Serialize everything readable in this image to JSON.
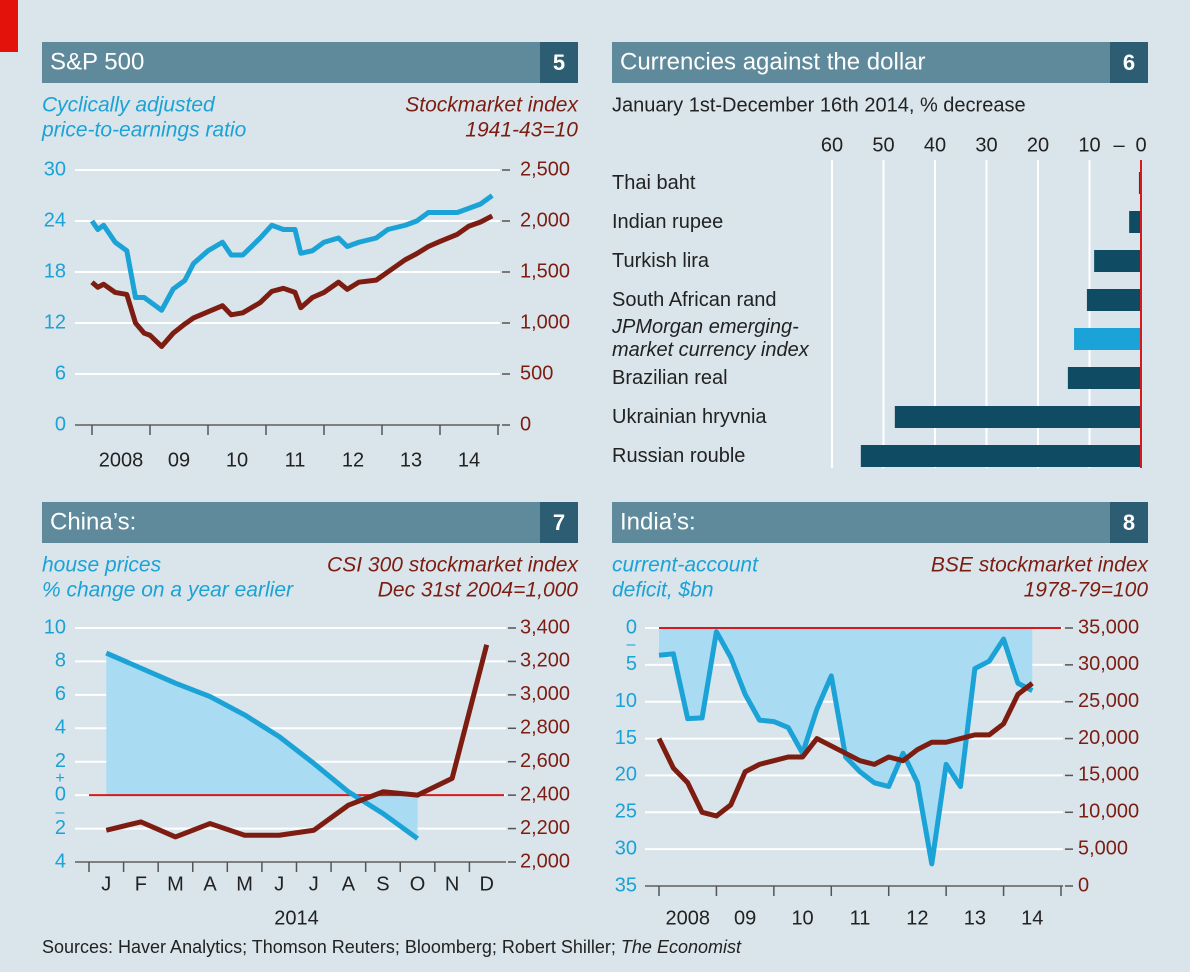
{
  "chart_data": [
    {
      "type": "line",
      "title": "S&P 500",
      "number": "5",
      "y_label": [
        "Cyclically adjusted",
        "price-to-earnings ratio"
      ],
      "y2_label": [
        "Stockmarket index",
        "1941-43=10"
      ],
      "x": [
        2008.0,
        2008.1,
        2008.2,
        2008.4,
        2008.6,
        2008.75,
        2008.9,
        2009.0,
        2009.2,
        2009.4,
        2009.6,
        2009.75,
        2010.0,
        2010.25,
        2010.4,
        2010.6,
        2010.9,
        2011.1,
        2011.3,
        2011.5,
        2011.6,
        2011.8,
        2012.0,
        2012.25,
        2012.4,
        2012.6,
        2012.9,
        2013.1,
        2013.4,
        2013.6,
        2013.8,
        2014.0,
        2014.3,
        2014.5,
        2014.7,
        2014.9
      ],
      "xlim": [
        2008,
        2015
      ],
      "xticks": [
        2008,
        {
          "value": 2009,
          "label": "09"
        },
        {
          "value": 2010,
          "label": "10"
        },
        {
          "value": 2011,
          "label": "11"
        },
        {
          "value": 2012,
          "label": "12"
        },
        {
          "value": 2013,
          "label": "13"
        },
        {
          "value": 2014,
          "label": "14"
        }
      ],
      "ylim": [
        0,
        30
      ],
      "yticks": [
        0,
        6,
        12,
        18,
        24,
        30
      ],
      "y2lim": [
        0,
        2500
      ],
      "y2ticks": [
        0,
        500,
        {
          "value": 1000,
          "label": "1,000"
        },
        {
          "value": 1500,
          "label": "1,500"
        },
        {
          "value": 2000,
          "label": "2,000"
        },
        {
          "value": 2500,
          "label": "2,500"
        }
      ],
      "grid": true,
      "series": [
        {
          "color": "#1ba2d6",
          "values": [
            24,
            23,
            23.5,
            21.5,
            20.5,
            15,
            15,
            14.5,
            13.5,
            16,
            17,
            19,
            20.5,
            21.5,
            20,
            20,
            22,
            23.5,
            23,
            23,
            20.2,
            20.5,
            21.5,
            22,
            21,
            21.5,
            22,
            23,
            23.5,
            24,
            25,
            25,
            25,
            25.5,
            26,
            27
          ]
        },
        {
          "color": "#7d1d12",
          "axis": "y2",
          "values": [
            1400,
            1350,
            1380,
            1300,
            1280,
            1000,
            900,
            880,
            770,
            900,
            990,
            1050,
            1110,
            1170,
            1080,
            1100,
            1200,
            1310,
            1340,
            1300,
            1150,
            1250,
            1300,
            1400,
            1330,
            1400,
            1420,
            1500,
            1620,
            1680,
            1750,
            1800,
            1870,
            1950,
            1990,
            2050
          ]
        }
      ]
    },
    {
      "type": "hbar",
      "title": "Currencies against the dollar",
      "number": "6",
      "subtitle": "January 1st-December 16th 2014, % decrease",
      "categories": [
        "Thai baht",
        "Indian rupee",
        "Turkish lira",
        "South African rand",
        "JPMorgan emerging-market currency index",
        "Brazilian real",
        "Ukrainian hryvnia",
        "Russian rouble"
      ],
      "values": [
        0.4,
        2.3,
        9.1,
        10.5,
        13.0,
        14.2,
        47.8,
        54.4
      ],
      "colors": [
        "#0f4c63",
        "#0f4c63",
        "#0f4c63",
        "#0f4c63",
        "#1ba2d6",
        "#0f4c63",
        "#0f4c63",
        "#0f4c63"
      ],
      "italic": [
        false,
        false,
        false,
        false,
        true,
        false,
        false,
        false
      ],
      "xlim": [
        60,
        0
      ],
      "xticks": [
        60,
        50,
        40,
        30,
        20,
        10,
        0
      ],
      "sign_labels": [
        "–"
      ],
      "grid": true,
      "zero_line": true
    },
    {
      "type": "line",
      "title": "China’s:",
      "number": "7",
      "y_label": [
        "house prices",
        "% change on a year earlier"
      ],
      "y2_label": [
        "CSI 300 stockmarket index",
        "Dec 31st 2004=1,000"
      ],
      "categories": [
        "J",
        "F",
        "M",
        "A",
        "M",
        "J",
        "J",
        "A",
        "S",
        "O",
        "N",
        "D"
      ],
      "x_label": "2014",
      "ylim": [
        -4,
        10
      ],
      "yticks": [
        10,
        8,
        6,
        4,
        2,
        0,
        {
          "value": -2,
          "label": "2"
        },
        {
          "value": -4,
          "label": "4"
        }
      ],
      "sign_labels": [
        "+",
        "–"
      ],
      "y2lim": [
        2000,
        3400
      ],
      "y2ticks": [
        {
          "value": 3400,
          "label": "3,400"
        },
        {
          "value": 3200,
          "label": "3,200"
        },
        {
          "value": 3000,
          "label": "3,000"
        },
        {
          "value": 2800,
          "label": "2,800"
        },
        {
          "value": 2600,
          "label": "2,600"
        },
        {
          "value": 2400,
          "label": "2,400"
        },
        {
          "value": 2200,
          "label": "2,200"
        },
        {
          "value": 2000,
          "label": "2,000"
        }
      ],
      "grid": true,
      "zero_line": true,
      "series": [
        {
          "color": "#1ba2d6",
          "area": true,
          "values": [
            8.5,
            7.6,
            6.7,
            5.9,
            4.8,
            3.5,
            1.9,
            0.2,
            -1.1,
            -2.6,
            null,
            null
          ]
        },
        {
          "color": "#7d1d12",
          "axis": "y2",
          "values": [
            2190,
            2240,
            2150,
            2230,
            2160,
            2160,
            2190,
            2340,
            2420,
            2400,
            2500,
            3300
          ]
        }
      ]
    },
    {
      "type": "line",
      "title": "India’s:",
      "number": "8",
      "y_label": [
        "current-account",
        "deficit, $bn"
      ],
      "y2_label": [
        "BSE stockmarket index",
        "1978-79=100"
      ],
      "x": [
        2008.0,
        2008.25,
        2008.5,
        2008.75,
        2009.0,
        2009.25,
        2009.5,
        2009.75,
        2010.0,
        2010.25,
        2010.5,
        2010.75,
        2011.0,
        2011.25,
        2011.5,
        2011.75,
        2012.0,
        2012.25,
        2012.5,
        2012.75,
        2013.0,
        2013.25,
        2013.5,
        2013.75,
        2014.0,
        2014.25,
        2014.5
      ],
      "xlim": [
        2008,
        2015
      ],
      "xticks": [
        2008,
        {
          "value": 2009,
          "label": "09"
        },
        {
          "value": 2010,
          "label": "10"
        },
        {
          "value": 2011,
          "label": "11"
        },
        {
          "value": 2012,
          "label": "12"
        },
        {
          "value": 2013,
          "label": "13"
        },
        {
          "value": 2014,
          "label": "14"
        }
      ],
      "ylim": [
        35,
        0
      ],
      "yticks": [
        0,
        5,
        10,
        15,
        20,
        25,
        30,
        35
      ],
      "sign_labels": [
        "–"
      ],
      "y2lim": [
        0,
        35000
      ],
      "y2ticks": [
        {
          "value": 35000,
          "label": "35,000"
        },
        {
          "value": 30000,
          "label": "30,000"
        },
        {
          "value": 25000,
          "label": "25,000"
        },
        {
          "value": 20000,
          "label": "20,000"
        },
        {
          "value": 15000,
          "label": "15,000"
        },
        {
          "value": 10000,
          "label": "10,000"
        },
        {
          "value": 5000,
          "label": "5,000"
        },
        0
      ],
      "grid": true,
      "zero_line": true,
      "series": [
        {
          "color": "#1ba2d6",
          "area": true,
          "values": [
            3.7,
            3.5,
            12.3,
            12.2,
            0.5,
            4,
            9,
            12.5,
            12.7,
            13.5,
            17,
            11,
            6.5,
            17.5,
            19.5,
            21,
            21.5,
            17,
            21,
            32,
            18.5,
            21.5,
            5.5,
            4.5,
            1.5,
            7.5,
            8.5
          ]
        },
        {
          "color": "#7d1d12",
          "axis": "y2",
          "values": [
            20000,
            16000,
            14000,
            10000,
            9500,
            11000,
            15500,
            16500,
            17000,
            17500,
            17500,
            20000,
            19000,
            18000,
            17000,
            16500,
            17500,
            17000,
            18500,
            19500,
            19500,
            20000,
            20500,
            20500,
            22000,
            26000,
            27500
          ]
        }
      ]
    }
  ],
  "source": "Sources: Haver Analytics; Thomson Reuters; Bloomberg; Robert Shiller;",
  "source_italic": "The Economist"
}
